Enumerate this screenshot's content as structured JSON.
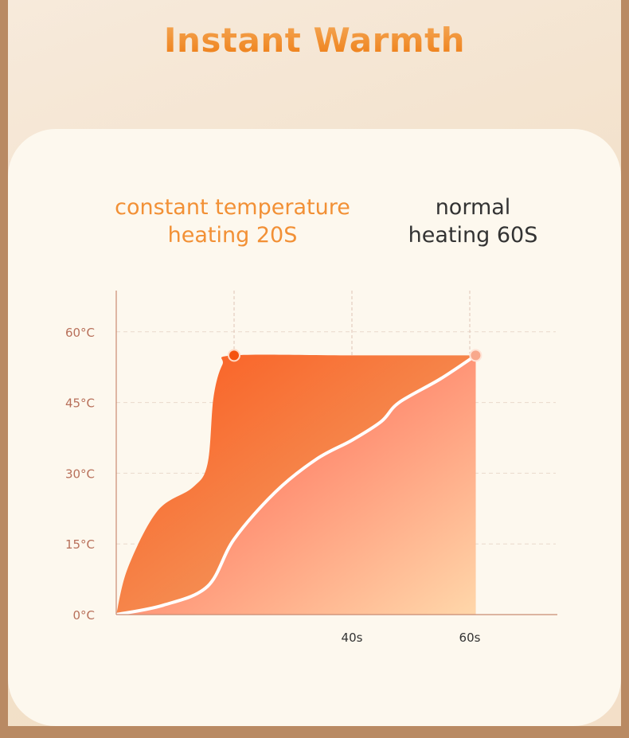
{
  "title": "Instant Warmth",
  "colors": {
    "accent": "#f28a22",
    "axis": "#c98a72",
    "frame": "#b98a63"
  },
  "chart_data": {
    "type": "area",
    "title": "Instant Warmth",
    "xlabel": "",
    "ylabel": "",
    "xlim": [
      0,
      75
    ],
    "ylim": [
      0,
      60
    ],
    "y_ticks": [
      {
        "v": 0,
        "label": "0°C"
      },
      {
        "v": 15,
        "label": "15°C"
      },
      {
        "v": 30,
        "label": "30°C"
      },
      {
        "v": 45,
        "label": "45°C"
      },
      {
        "v": 60,
        "label": "60°C"
      }
    ],
    "x_ticks": [
      {
        "v": 40,
        "label": "40s"
      },
      {
        "v": 60,
        "label": "60s"
      }
    ],
    "grid": true,
    "series": [
      {
        "name": "constant temperature heating 20S",
        "label_lines": [
          "constant temperature",
          "heating 20S"
        ],
        "color": "#f26a2a",
        "x": [
          0,
          2,
          7,
          13,
          15.5,
          16.5,
          18,
          20,
          40,
          61
        ],
        "y": [
          0,
          10,
          22,
          27,
          32,
          46,
          53,
          55,
          55,
          55
        ]
      },
      {
        "name": "normal heating 60S",
        "label_lines": [
          "normal",
          "heating 60S"
        ],
        "color": "#ff8a6a",
        "x": [
          0,
          8,
          15.5,
          20,
          27,
          34,
          40,
          45,
          48,
          55,
          61
        ],
        "y": [
          0,
          2,
          6,
          16,
          26,
          33,
          37,
          41,
          45,
          50,
          55
        ]
      }
    ],
    "markers": [
      {
        "x": 20,
        "y": 55
      },
      {
        "x": 61,
        "y": 55
      }
    ]
  }
}
